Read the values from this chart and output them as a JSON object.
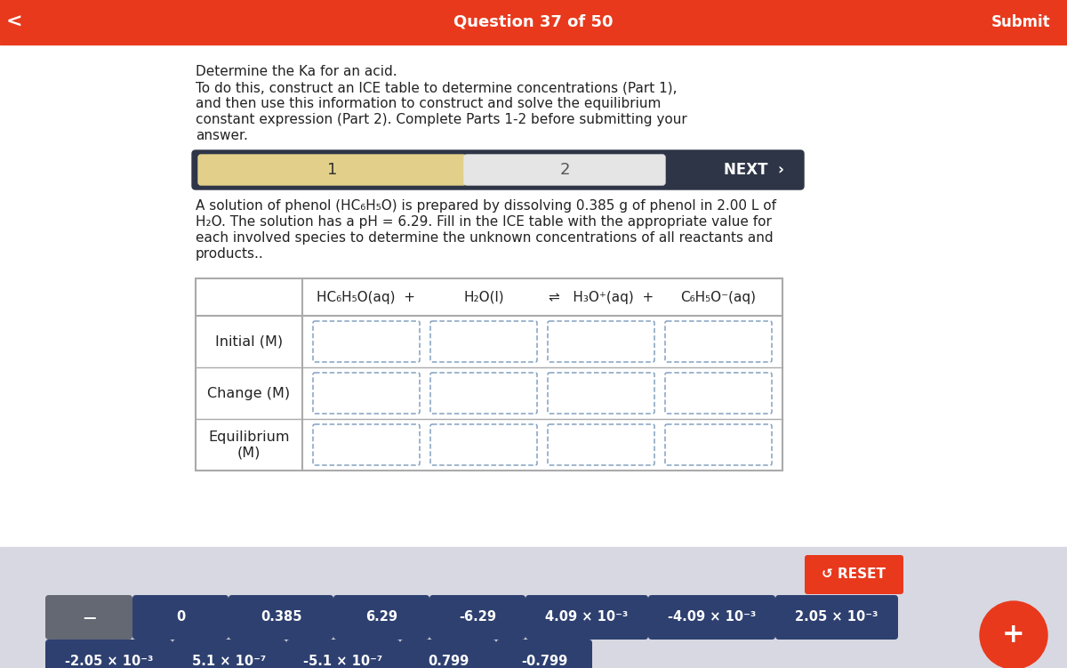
{
  "header_color": "#E8391D",
  "header_text": "Question 37 of 50",
  "header_submit": "Submit",
  "header_back": "<",
  "bg_color": "#FFFFFF",
  "bottom_bg_color": "#D8D8E2",
  "title_text1": "Determine the Ka for an acid.",
  "title_text2": "To do this, construct an ICE table to determine concentrations (Part 1),",
  "title_text3": "and then use this information to construct and solve the equilibrium",
  "title_text4": "constant expression (Part 2). Complete Parts 1-2 before submitting your",
  "title_text5": "answer.",
  "tab1_label": "1",
  "tab2_label": "2",
  "tab_next": "NEXT  ›",
  "tab1_color": "#E2D08A",
  "tab2_color": "#E5E5E5",
  "tab_bg_color": "#2E3547",
  "body_text1": "A solution of phenol (HC₆H₅O) is prepared by dissolving 0.385 g of phenol in 2.00 L of",
  "body_text2": "H₂O. The solution has a pH = 6.29. Fill in the ICE table with the appropriate value for",
  "body_text3": "each involved species to determine the unknown concentrations of all reactants and",
  "body_text4": "products..",
  "eq_col1": "HC₆H₅O(aq)  +",
  "eq_col2": "H₂O(l)",
  "eq_col3": "⇌   H₃O⁺(aq)  +",
  "eq_col4": "C₆H₅O⁻(aq)",
  "row_labels": [
    "Initial (M)",
    "Change (M)",
    "Equilibrium\n(M)"
  ],
  "reset_btn_color": "#E8391D",
  "reset_btn_text": "↺ RESET",
  "btn_color_gray": "#636873",
  "btn_color_blue": "#2E4070",
  "btn_color_red": "#E8391D",
  "btn_row1": [
    "—",
    "0",
    "0.385",
    "6.29",
    "-6.29",
    "4.09 × 10⁻³",
    "-4.09 × 10⁻³",
    "2.05 × 10⁻³"
  ],
  "btn_row2": [
    "-2.05 × 10⁻³",
    "5.1 × 10⁻⁷",
    "-5.1 × 10⁻⁷",
    "0.799",
    "-0.799"
  ],
  "plus_btn_text": "+",
  "font_color_white": "#FFFFFF",
  "font_color_dark": "#222222",
  "cell_border_color": "#7799BB"
}
